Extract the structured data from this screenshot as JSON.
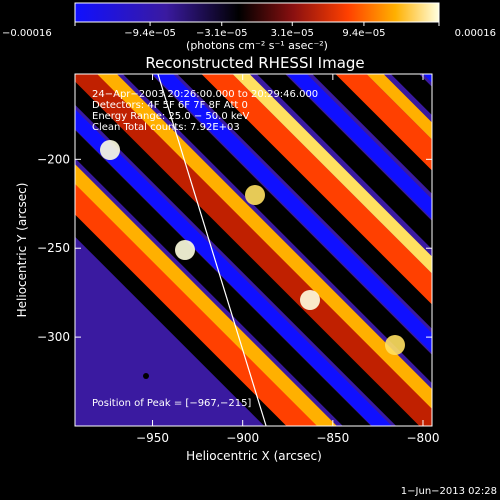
{
  "chart_data": {
    "type": "heatmap",
    "title": "Reconstructed RHESSI Image",
    "xlabel": "Heliocentric X (arcsec)",
    "ylabel": "Heliocentric Y (arcsec)",
    "xlim": [
      -993,
      -795
    ],
    "ylim": [
      -350,
      -152
    ],
    "x_ticks": [
      -950,
      -900,
      -850,
      -800
    ],
    "x_tick_labels": [
      "−950",
      "−900",
      "−850",
      "−800"
    ],
    "y_ticks": [
      -200,
      -250,
      -300
    ],
    "y_tick_labels": [
      "−200",
      "−250",
      "−300"
    ],
    "colorbar": {
      "min": -0.00016,
      "max": 0.00016,
      "tick_values": [
        -0.00016,
        -9.4e-05,
        -3.1e-05,
        3.1e-05,
        9.4e-05,
        0.00016
      ],
      "tick_labels": [
        "−0.00016",
        "−9.4e−05",
        "−3.1e−05",
        "3.1e−05",
        "9.4e−05",
        "0.00016"
      ],
      "unit_label": "(photons cm⁻² s⁻¹ asec⁻²)",
      "colors": [
        "#1010ff",
        "#3a1aa0",
        "#000000",
        "#8a1010",
        "#ff4000",
        "#ffb000",
        "#ffffe0"
      ]
    },
    "annotations": [
      "24−Apr−2003 20:26:00.000 to 20:29:46.000",
      "Detectors: 4F 5F 6F 7F 8F  Att 0",
      "Energy Range: 25.0 − 50.0 keV",
      "Clean    Total counts: 7.92E+03"
    ],
    "peak_label": "Position of Peak = [−967,−215]",
    "peak": [
      -967,
      -215
    ],
    "limb_line": [
      [
        -947,
        -152
      ],
      [
        -887,
        -350
      ]
    ],
    "grid": false
  },
  "footer": {
    "date": "1−Jun−2013 02:28"
  }
}
